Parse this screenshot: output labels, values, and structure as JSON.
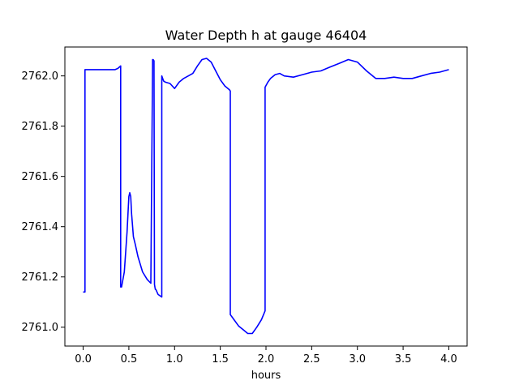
{
  "chart_data": {
    "type": "line",
    "title": "Water Depth h at gauge 46404",
    "xlabel": "hours",
    "ylabel": "",
    "xlim": [
      -0.2,
      4.2
    ],
    "ylim": [
      2760.925,
      2762.115
    ],
    "xticks": [
      0.0,
      0.5,
      1.0,
      1.5,
      2.0,
      2.5,
      3.0,
      3.5,
      4.0
    ],
    "xtick_labels": [
      "0.0",
      "0.5",
      "1.0",
      "1.5",
      "2.0",
      "2.5",
      "3.0",
      "3.5",
      "4.0"
    ],
    "yticks": [
      2761.0,
      2761.2,
      2761.4,
      2761.6,
      2761.8,
      2762.0
    ],
    "ytick_labels": [
      "2761.0",
      "2761.2",
      "2761.4",
      "2761.6",
      "2761.8",
      "2762.0"
    ],
    "grid": false,
    "series": [
      {
        "color": "#0000ff",
        "x": [
          0.0,
          0.02,
          0.02,
          0.1,
          0.2,
          0.3,
          0.35,
          0.38,
          0.41,
          0.41,
          0.42,
          0.45,
          0.48,
          0.5,
          0.51,
          0.52,
          0.53,
          0.55,
          0.57,
          0.6,
          0.65,
          0.7,
          0.74,
          0.76,
          0.765,
          0.775,
          0.78,
          0.785,
          0.79,
          0.795,
          0.82,
          0.86,
          0.86,
          0.88,
          0.9,
          0.95,
          1.0,
          1.05,
          1.1,
          1.15,
          1.2,
          1.25,
          1.3,
          1.35,
          1.4,
          1.45,
          1.5,
          1.55,
          1.6,
          1.61,
          1.61,
          1.65,
          1.7,
          1.75,
          1.8,
          1.85,
          1.9,
          1.95,
          1.99,
          1.99,
          2.02,
          2.05,
          2.1,
          2.15,
          2.2,
          2.3,
          2.4,
          2.5,
          2.6,
          2.7,
          2.8,
          2.9,
          3.0,
          3.1,
          3.2,
          3.3,
          3.4,
          3.5,
          3.6,
          3.7,
          3.8,
          3.9,
          4.0
        ],
        "y": [
          2761.14,
          2761.14,
          2762.025,
          2762.025,
          2762.025,
          2762.025,
          2762.025,
          2762.03,
          2762.04,
          2761.16,
          2761.16,
          2761.22,
          2761.38,
          2761.52,
          2761.535,
          2761.52,
          2761.45,
          2761.36,
          2761.33,
          2761.28,
          2761.22,
          2761.19,
          2761.175,
          2762.065,
          2762.065,
          2762.06,
          2761.17,
          2761.16,
          2761.15,
          2761.15,
          2761.13,
          2761.12,
          2762.0,
          2761.98,
          2761.975,
          2761.97,
          2761.95,
          2761.975,
          2761.99,
          2762.0,
          2762.01,
          2762.04,
          2762.065,
          2762.07,
          2762.055,
          2762.02,
          2761.985,
          2761.96,
          2761.945,
          2761.94,
          2761.05,
          2761.03,
          2761.005,
          2760.99,
          2760.975,
          2760.975,
          2761.0,
          2761.03,
          2761.065,
          2761.955,
          2761.975,
          2761.99,
          2762.005,
          2762.01,
          2762.0,
          2761.995,
          2762.005,
          2762.015,
          2762.02,
          2762.035,
          2762.05,
          2762.065,
          2762.055,
          2762.02,
          2761.99,
          2761.99,
          2761.995,
          2761.99,
          2761.99,
          2762.0,
          2762.01,
          2762.015,
          2762.025
        ]
      }
    ]
  }
}
